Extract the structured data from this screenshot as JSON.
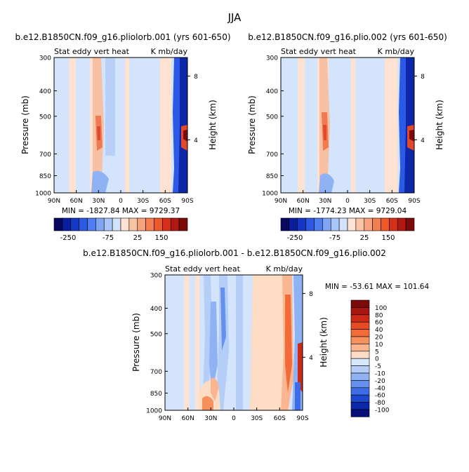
{
  "chart_data": [
    {
      "type": "heatmap",
      "title": "b.e12.B1850CN.f09_g16.pliolorb.001 (yrs 601-650)",
      "subtitle_left": "Stat eddy vert heat",
      "subtitle_right": "K mb/day",
      "ylabel": "Pressure (mb)",
      "ylabel_right": "Height (km)",
      "x_ticks": [
        "90N",
        "60N",
        "30N",
        "0",
        "30S",
        "60S",
        "90S"
      ],
      "y_ticks": [
        "300",
        "400",
        "500",
        "700",
        "850",
        "1000"
      ],
      "y_right_ticks": [
        "8",
        "4"
      ],
      "min_max": "MIN = -1827.84   MAX = 9729.37",
      "colorbar_ticks": [
        "-250",
        "-75",
        "25",
        "150"
      ]
    },
    {
      "type": "heatmap",
      "title": "b.e12.B1850CN.f09_g16.plio.002 (yrs 601-650)",
      "subtitle_left": "Stat eddy vert heat",
      "subtitle_right": "K mb/day",
      "ylabel": "Pressure (mb)",
      "ylabel_right": "Height (km)",
      "x_ticks": [
        "90N",
        "60N",
        "30N",
        "0",
        "30S",
        "60S",
        "90S"
      ],
      "y_ticks": [
        "300",
        "400",
        "500",
        "700",
        "850",
        "1000"
      ],
      "y_right_ticks": [
        "8",
        "4"
      ],
      "min_max": "MIN = -1774.23   MAX = 9729.04",
      "colorbar_ticks": [
        "-250",
        "-75",
        "25",
        "150"
      ]
    },
    {
      "type": "heatmap",
      "title": "b.e12.B1850CN.f09_g16.pliolorb.001 - b.e12.B1850CN.f09_g16.plio.002",
      "subtitle_left": "Stat eddy vert heat",
      "subtitle_right": "K mb/day",
      "ylabel": "Pressure (mb)",
      "ylabel_right": "Height (km)",
      "x_ticks": [
        "90N",
        "60N",
        "30N",
        "0",
        "30S",
        "60S",
        "90S"
      ],
      "y_ticks": [
        "300",
        "400",
        "500",
        "700",
        "850",
        "1000"
      ],
      "y_right_ticks": [
        "8",
        "4"
      ],
      "min_max": "MIN = -53.61   MAX = 101.64",
      "colorbar_labels": [
        "100",
        "80",
        "60",
        "40",
        "20",
        "10",
        "5",
        "0",
        "-5",
        "-10",
        "-20",
        "-40",
        "-60",
        "-80",
        "-100"
      ]
    }
  ],
  "page_title": "JJA",
  "palette": {
    "colorbar_colors": [
      "#08085e",
      "#0a1ea0",
      "#1238c8",
      "#2c5ae6",
      "#4d7ff0",
      "#7ea6f4",
      "#a9c6f8",
      "#d2e2fc",
      "#fce3d2",
      "#f9c4a6",
      "#f7a47c",
      "#f37e52",
      "#ec5a2c",
      "#d7301a",
      "#b01810",
      "#7c0a0a"
    ],
    "diff_colors": [
      "#7c0a0a",
      "#a81612",
      "#cc2a16",
      "#e84a22",
      "#f26c3a",
      "#f6905c",
      "#f9b690",
      "#fcdcc4",
      "#d6e6fc",
      "#b4cef8",
      "#8eb2f4",
      "#6690ee",
      "#3e6ce6",
      "#1c48d0",
      "#0a28a8",
      "#06107a"
    ],
    "background_blue": "#d3e4fc"
  }
}
